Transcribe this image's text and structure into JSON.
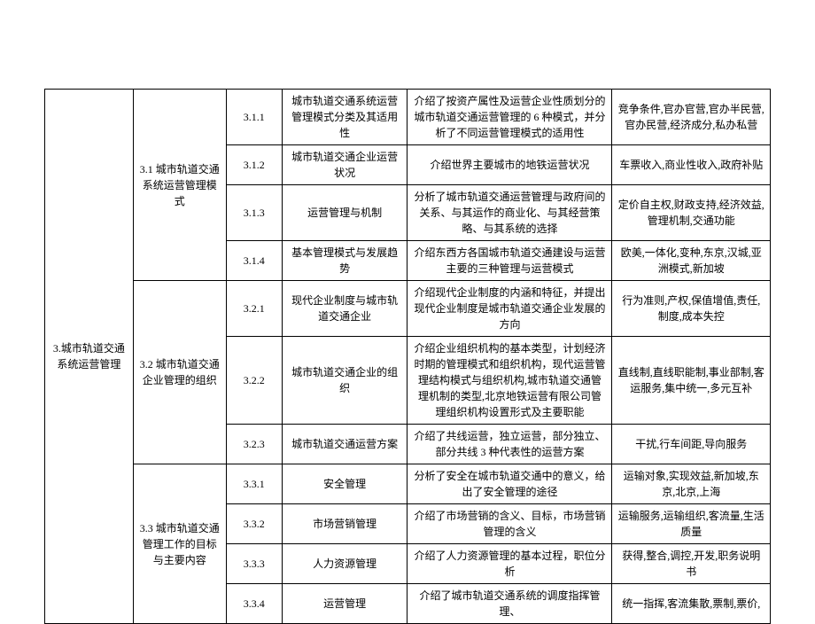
{
  "table": {
    "columns": [
      "col-ch",
      "col-sec",
      "col-num",
      "col-ttl",
      "col-desc",
      "col-kw"
    ],
    "chapter": "3.城市轨道交通系统运营管理",
    "sections": [
      {
        "title": "3.1 城市轨道交通系统运营管理模式",
        "rows": [
          {
            "num": "3.1.1",
            "ttl": "城市轨道交通系统运营管理模式分类及其适用性",
            "desc": "介绍了按资产属性及运营企业性质划分的城市轨道交通运营管理的 6 种模式，并分析了不同运营管理模式的适用性",
            "kw": "竞争条件,官办官营,官办半民营,官办民营,经济成分,私办私营"
          },
          {
            "num": "3.1.2",
            "ttl": "城市轨道交通企业运营状况",
            "desc": "介绍世界主要城市的地铁运营状况",
            "kw": "车票收入,商业性收入,政府补贴"
          },
          {
            "num": "3.1.3",
            "ttl": "运营管理与机制",
            "desc": "分析了城市轨道交通运营管理与政府间的关系、与其运作的商业化、与其经营策略、与其系统的选择",
            "kw": "定价自主权,财政支持,经济效益,管理机制,交通功能"
          },
          {
            "num": "3.1.4",
            "ttl": "基本管理模式与发展趋势",
            "desc": "介绍东西方各国城市轨道交通建设与运营主要的三种管理与运营模式",
            "kw": "欧美,一体化,变种,东京,汉城,亚洲模式,新加坡"
          }
        ]
      },
      {
        "title": "3.2 城市轨道交通企业管理的组织",
        "rows": [
          {
            "num": "3.2.1",
            "ttl": "现代企业制度与城市轨道交通企业",
            "desc": "介绍现代企业制度的内涵和特征，并提出现代企业制度是城市轨道交通企业发展的方向",
            "kw": "行为准则,产权,保值增值,责任,制度,成本失控"
          },
          {
            "num": "3.2.2",
            "ttl": "城市轨道交通企业的组织",
            "desc": "介绍企业组织机构的基本类型，计划经济时期的管理模式和组织机构，现代运营管理结构模式与组织机构,城市轨道交通管理机制的类型,北京地铁运营有限公司管理组织机构设置形式及主要职能",
            "kw": "直线制,直线职能制,事业部制,客运服务,集中统一,多元互补"
          },
          {
            "num": "3.2.3",
            "ttl": "城市轨道交通运营方案",
            "desc": "介绍了共线运营，独立运营，部分独立、部分共线 3 种代表性的运营方案",
            "kw": "干扰,行车间距,导向服务"
          }
        ]
      },
      {
        "title": "3.3 城市轨道交通管理工作的目标与主要内容",
        "rows": [
          {
            "num": "3.3.1",
            "ttl": "安全管理",
            "desc": "分析了安全在城市轨道交通中的意义，给出了安全管理的途径",
            "kw": "运输对象,实现效益,新加坡,东京,北京,上海"
          },
          {
            "num": "3.3.2",
            "ttl": "市场营销管理",
            "desc": "介绍了市场营销的含义、目标，市场营销管理的含义",
            "kw": "运输服务,运输组织,客流量,生活质量"
          },
          {
            "num": "3.3.3",
            "ttl": "人力资源管理",
            "desc": "介绍了人力资源管理的基本过程，职位分析",
            "kw": "获得,整合,调控,开发,职务说明书"
          },
          {
            "num": "3.3.4",
            "ttl": "运营管理",
            "desc": "介绍了城市轨道交通系统的调度指挥管理、",
            "kw": "统一指挥,客流集散,票制,票价,"
          }
        ]
      }
    ]
  },
  "style": {
    "font_family": "SimSun",
    "font_size_pt": 9,
    "border_color": "#000000",
    "background_color": "#ffffff",
    "text_color": "#000000",
    "align": "center",
    "line_height": 1.5
  }
}
